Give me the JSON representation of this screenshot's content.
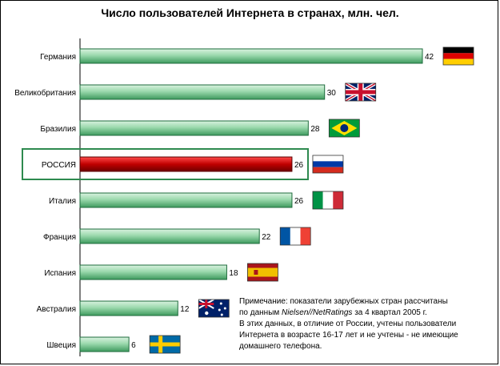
{
  "chart_data": {
    "type": "bar",
    "orientation": "horizontal",
    "title": "Число пользователей Интернета в странах, млн. чел.",
    "categories": [
      "Германия",
      "Великобритания",
      "Бразилия",
      "РОССИЯ",
      "Италия",
      "Франция",
      "Испания",
      "Австралия",
      "Швеция"
    ],
    "values": [
      42,
      30,
      28,
      26,
      26,
      22,
      18,
      12,
      6
    ],
    "highlight": "РОССИЯ",
    "xlim": [
      0,
      42
    ],
    "grid": false,
    "colors": {
      "bar": "#8fd4a4",
      "bar_dark": "#2e8a4f",
      "highlight": "#c00000",
      "highlight_box": "#2e8a4f"
    },
    "flags": [
      "germany-flag",
      "uk-flag",
      "brazil-flag",
      "russia-flag",
      "italy-flag",
      "france-flag",
      "spain-flag",
      "australia-flag",
      "sweden-flag"
    ]
  },
  "note": {
    "line1": "Примечание: показатели зарубежных стран рассчитаны",
    "line2_pre": "по данным ",
    "line2_source": "Nielsen//NetRatings",
    "line2_post": " за 4 квартал 2005 г.",
    "line3": "В этих данных, в отличие от России, учтены пользователи",
    "line4": "Интернета в возрасте 16-17 лет и не учтены - не имеющие",
    "line5": "домашнего телефона."
  }
}
